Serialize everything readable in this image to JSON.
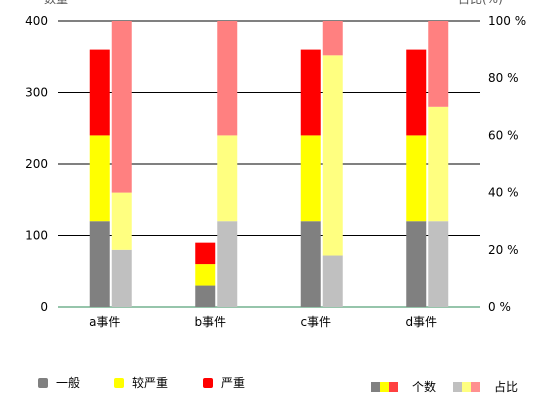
{
  "chart_data": {
    "type": "bar",
    "categories": [
      "a事件",
      "b事件",
      "c事件",
      "d事件"
    ],
    "left_axis": {
      "label": "数量",
      "ylim": [
        0,
        400
      ],
      "ticks": [
        "0",
        "100",
        "200",
        "300",
        "400"
      ]
    },
    "right_axis": {
      "label": "占比(%)",
      "ylim": [
        0,
        100
      ],
      "ticks": [
        "0 %",
        "20 %",
        "40 %",
        "60 %",
        "80 %",
        "100 %"
      ]
    },
    "count_series": [
      {
        "name": "一般",
        "color": "#808080",
        "values": [
          120,
          30,
          120,
          120
        ]
      },
      {
        "name": "较严重",
        "color": "#ffff00",
        "values": [
          120,
          30,
          120,
          120
        ]
      },
      {
        "name": "严重",
        "color": "#ff0000",
        "values": [
          120,
          30,
          120,
          120
        ]
      }
    ],
    "ratio_series": [
      {
        "name": "一般",
        "color": "#c0c0c0",
        "values": [
          20,
          30,
          18,
          30
        ]
      },
      {
        "name": "较严重",
        "color": "#ffff80",
        "values": [
          20,
          30,
          70,
          40
        ]
      },
      {
        "name": "严重",
        "color": "#ff8080",
        "values": [
          60,
          40,
          12,
          30
        ]
      }
    ],
    "grid": true,
    "legend": {
      "items": [
        {
          "label": "一般",
          "color": "#808080"
        },
        {
          "label": "较严重",
          "color": "#ffff00"
        },
        {
          "label": "严重",
          "color": "#ff0000"
        }
      ],
      "group_count_label": "个数",
      "group_ratio_label": "占比"
    }
  }
}
